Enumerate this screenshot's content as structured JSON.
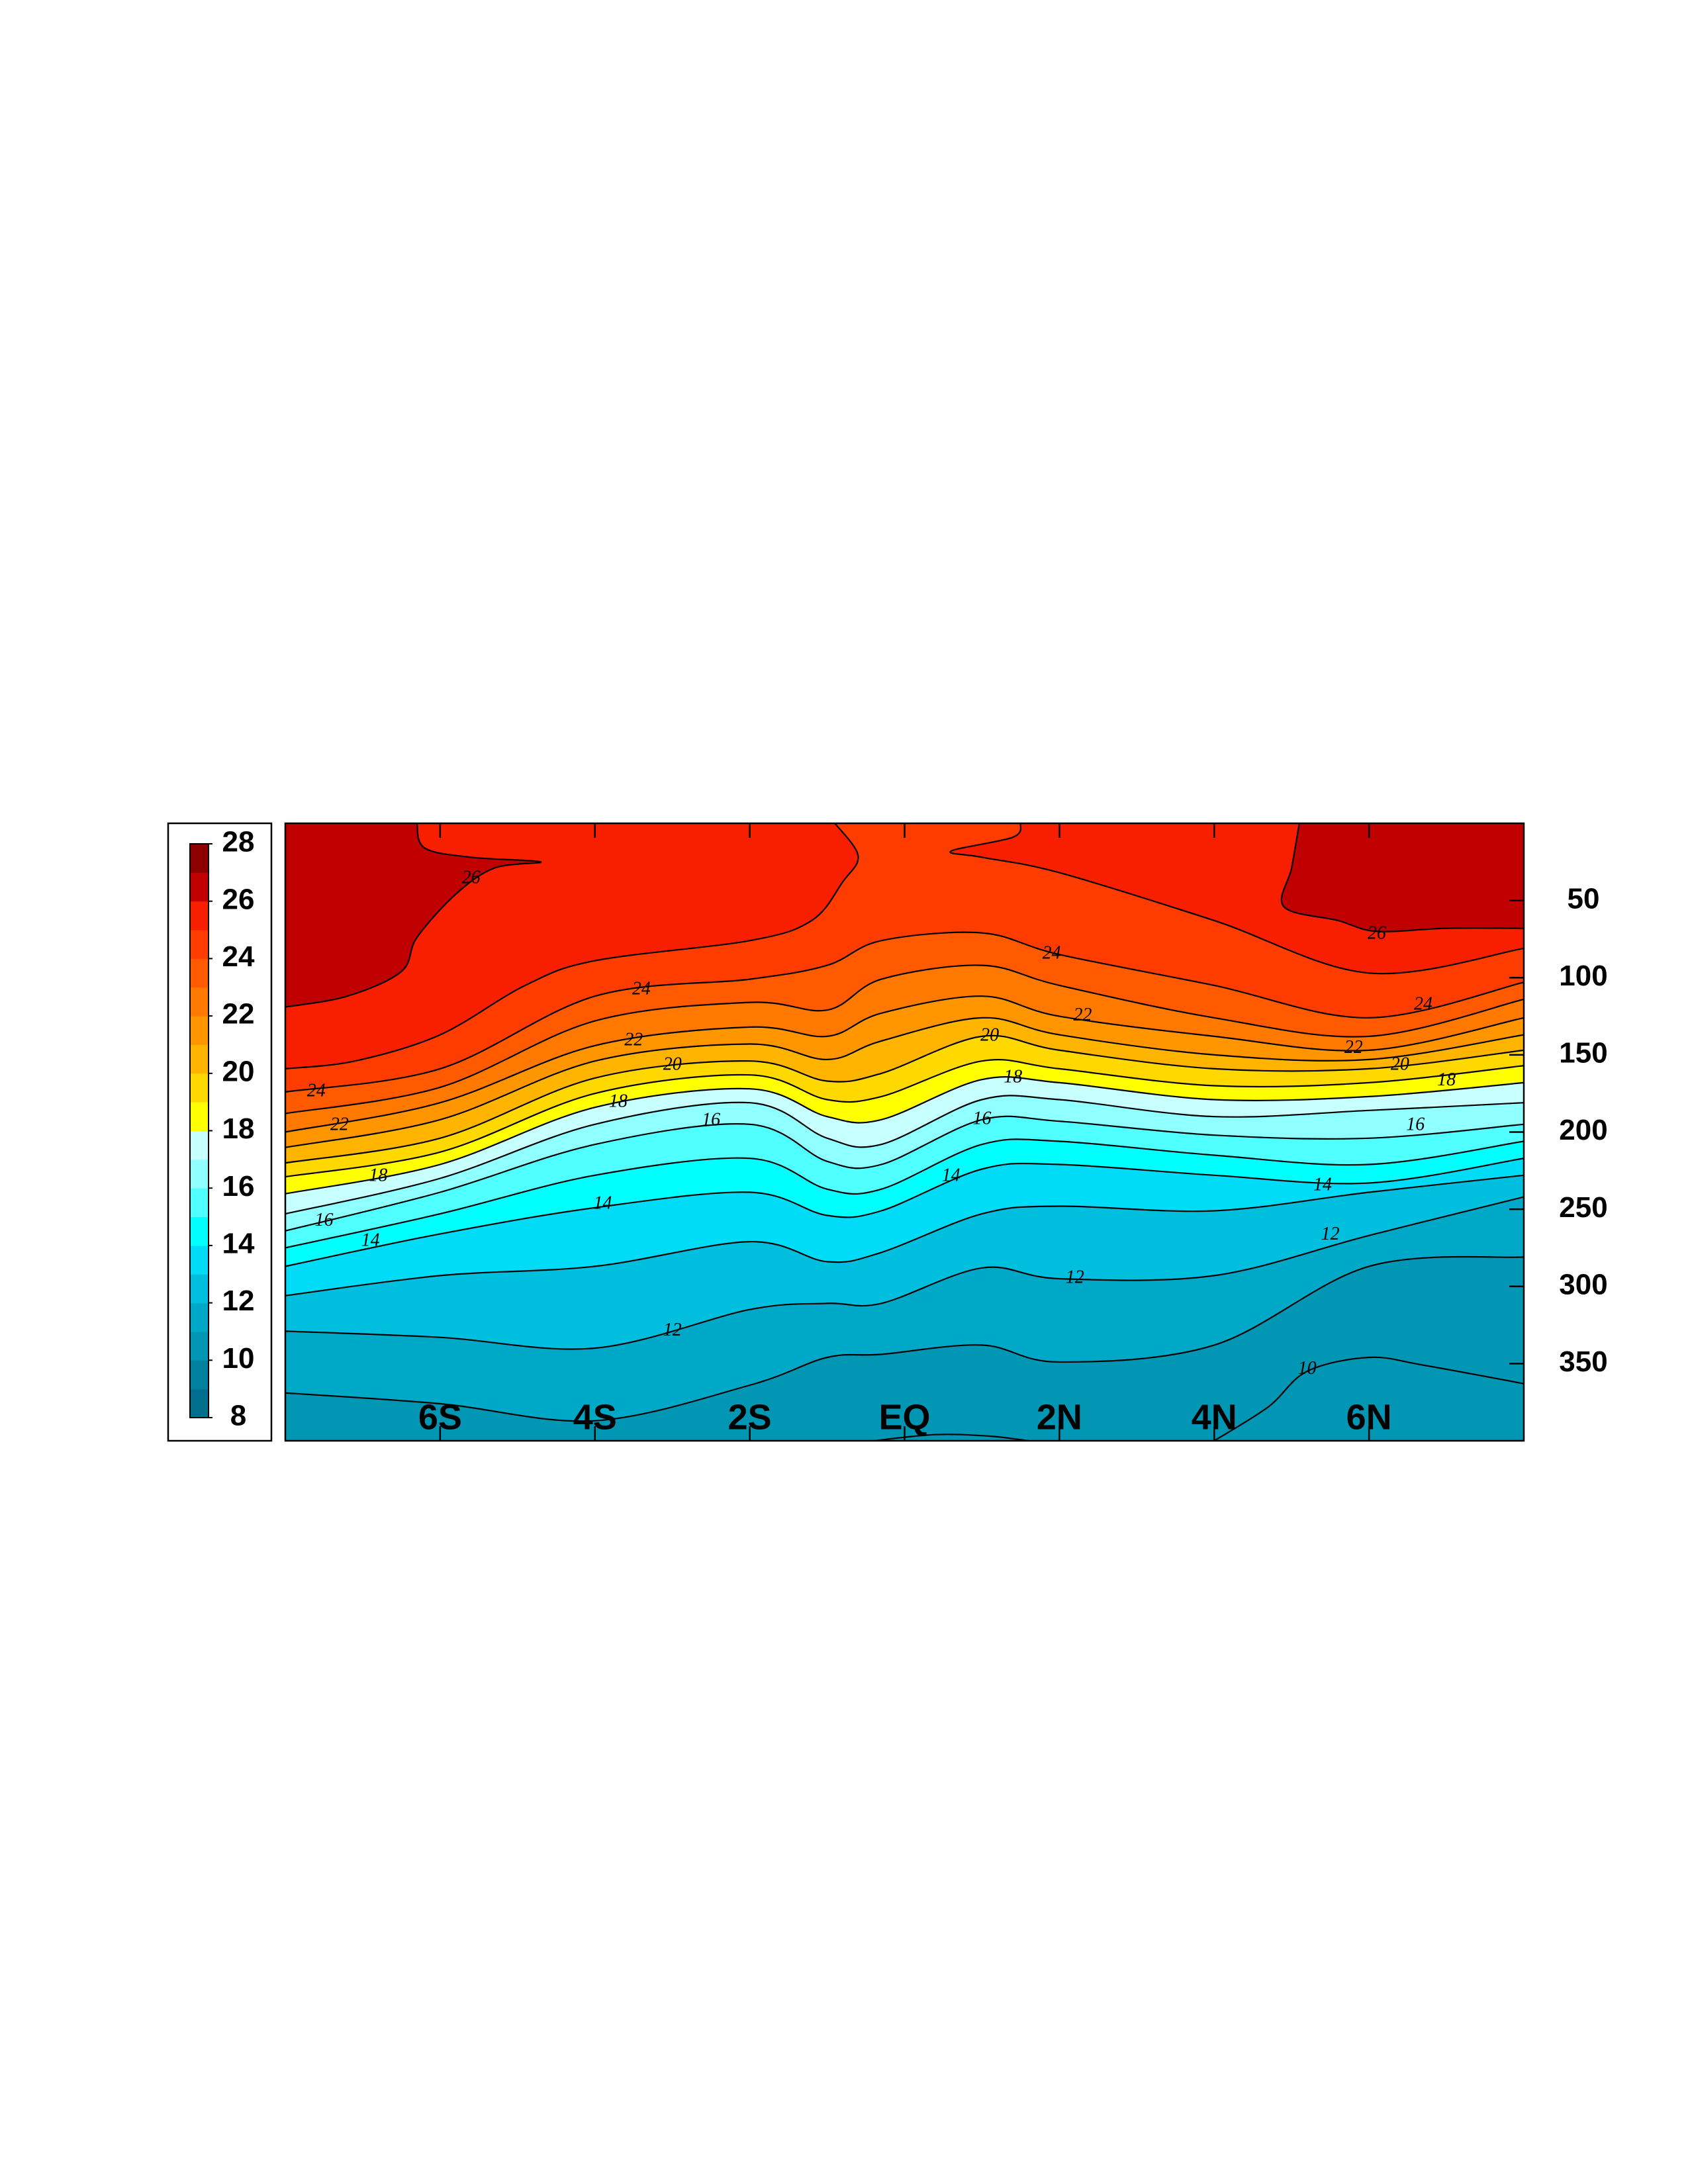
{
  "chart_data": {
    "type": "contour",
    "xlim": [
      -8,
      8
    ],
    "ylim": [
      0,
      400
    ],
    "invert_y": true,
    "xticks": [
      {
        "value": -6,
        "label": "6S"
      },
      {
        "value": -4,
        "label": "4S"
      },
      {
        "value": -2,
        "label": "2S"
      },
      {
        "value": 0,
        "label": "EQ"
      },
      {
        "value": 2,
        "label": "2N"
      },
      {
        "value": 4,
        "label": "4N"
      },
      {
        "value": 6,
        "label": "6N"
      }
    ],
    "yticks": [
      50,
      100,
      150,
      200,
      250,
      300,
      350
    ],
    "colorbar": {
      "levels": [
        8,
        9,
        10,
        11,
        12,
        13,
        14,
        15,
        16,
        17,
        18,
        19,
        20,
        21,
        22,
        23,
        24,
        25,
        26,
        27,
        28
      ],
      "colors": [
        "#006e8c",
        "#00809f",
        "#0096b4",
        "#00a8c8",
        "#00bede",
        "#00dcf8",
        "#00ffff",
        "#50ffff",
        "#90ffff",
        "#c8ffff",
        "#ffff00",
        "#ffd800",
        "#ffb400",
        "#ff9600",
        "#ff7800",
        "#ff5a00",
        "#ff3c00",
        "#f81e00",
        "#c00000",
        "#8c0000"
      ],
      "ticks": [
        8,
        10,
        12,
        14,
        16,
        18,
        20,
        22,
        24,
        26,
        28
      ]
    },
    "contours": [
      {
        "level": 10,
        "x": [
          4,
          4.7,
          5.2,
          6.0,
          6.7,
          8
        ],
        "y": [
          400,
          378,
          355,
          346,
          351,
          363
        ]
      },
      {
        "level": 10,
        "x": [
          -0.4,
          0.4,
          1.1,
          1.6
        ],
        "y": [
          400,
          396,
          397,
          400
        ]
      },
      {
        "level": 11,
        "x": [
          -8,
          -6,
          -4,
          -2,
          -1,
          -0.3,
          1,
          2,
          4,
          6,
          8
        ],
        "y": [
          369,
          376,
          387,
          364,
          346,
          344,
          338,
          349,
          338,
          287,
          281
        ]
      },
      {
        "level": 12,
        "x": [
          -8,
          -6,
          -4,
          -2,
          -1,
          -0.3,
          1,
          2,
          4,
          6,
          8
        ],
        "y": [
          329,
          333,
          340,
          315,
          311,
          311,
          288,
          295,
          293,
          267,
          242
        ]
      },
      {
        "level": 13,
        "x": [
          -8,
          -6,
          -4,
          -2,
          -1,
          -0.3,
          1,
          2,
          4,
          6,
          8
        ],
        "y": [
          306,
          293,
          287,
          271,
          284,
          278,
          253,
          248,
          251,
          239,
          228
        ]
      },
      {
        "level": 14,
        "x": [
          -8,
          -6,
          -4,
          -2,
          -1,
          -0.3,
          1,
          2,
          4,
          6,
          8
        ],
        "y": [
          287,
          266,
          249,
          239,
          254,
          251,
          224,
          221,
          228,
          233,
          217
        ]
      },
      {
        "level": 15,
        "x": [
          -8,
          -6,
          -4,
          -2,
          -1,
          -0.3,
          1,
          2,
          4,
          6,
          8
        ],
        "y": [
          275,
          253,
          228,
          217,
          237,
          237,
          208,
          206,
          215,
          221,
          206
        ]
      },
      {
        "level": 16,
        "x": [
          -8,
          -6,
          -4,
          -2,
          -1,
          -0.3,
          1,
          2,
          4,
          6,
          8
        ],
        "y": [
          264,
          239,
          208,
          195,
          219,
          221,
          192,
          193,
          202,
          204,
          195
        ]
      },
      {
        "level": 17,
        "x": [
          -8,
          -6,
          -4,
          -2,
          -1,
          -0.3,
          1,
          2,
          4,
          6,
          8
        ],
        "y": [
          253,
          230,
          195,
          181,
          204,
          208,
          179,
          179,
          190,
          186,
          181
        ]
      },
      {
        "level": 18,
        "x": [
          -8,
          -6,
          -4,
          -2,
          -1,
          -0.3,
          1,
          2,
          4,
          6,
          8
        ],
        "y": [
          240,
          221,
          184,
          172,
          190,
          192,
          166,
          168,
          179,
          177,
          168
        ]
      },
      {
        "level": 19,
        "x": [
          -8,
          -6,
          -4,
          -2,
          -1,
          -0.3,
          1,
          2,
          4,
          6,
          8
        ],
        "y": [
          229,
          213,
          175,
          163,
          179,
          177,
          154,
          159,
          170,
          168,
          157
        ]
      },
      {
        "level": 20,
        "x": [
          -8,
          -6,
          -4,
          -2,
          -1,
          -0.3,
          1,
          2,
          4,
          6,
          8
        ],
        "y": [
          220,
          204,
          165,
          154,
          167,
          162,
          138,
          147,
          159,
          159,
          147
        ]
      },
      {
        "level": 21,
        "x": [
          -8,
          -6,
          -4,
          -2,
          -1,
          -0.3,
          1,
          2,
          4,
          6,
          8
        ],
        "y": [
          210,
          192,
          154,
          143,
          153,
          141,
          126,
          137,
          150,
          153,
          137
        ]
      },
      {
        "level": 22,
        "x": [
          -8,
          -6,
          -4,
          -2,
          -1,
          -0.3,
          1,
          2,
          4,
          6,
          8
        ],
        "y": [
          200,
          181,
          144,
          132,
          138,
          123,
          112,
          125,
          138,
          147,
          126
        ]
      },
      {
        "level": 23,
        "x": [
          -8,
          -6,
          -4,
          -2,
          -1,
          -0.3,
          1,
          2,
          4,
          6,
          8
        ],
        "y": [
          188,
          171,
          128,
          116,
          121,
          101,
          92,
          105,
          126,
          138,
          114
        ]
      },
      {
        "level": 24,
        "x": [
          -8,
          -6,
          -4,
          -2,
          -1,
          -0.3,
          1,
          2,
          4,
          6,
          8
        ],
        "y": [
          174,
          159,
          112,
          101,
          92,
          76,
          71,
          85,
          105,
          126,
          103
        ]
      },
      {
        "level": 25,
        "x": [
          -8,
          -7.1,
          -6,
          -4.9,
          -4,
          -2,
          -1.2,
          -0.8,
          -0.6,
          -0.9
        ],
        "y": [
          159,
          154,
          137,
          105,
          89,
          76,
          63,
          38,
          21,
          0
        ]
      },
      {
        "level": 25,
        "x": [
          1.5,
          1.4,
          0.6,
          1,
          2,
          4,
          6,
          8
        ],
        "y": [
          0,
          9,
          18,
          22,
          32,
          63,
          97,
          81
        ]
      },
      {
        "level": 26,
        "x": [
          -8,
          -7.2,
          -6.5,
          -6.3,
          -5.8,
          -5.3,
          -4.7,
          -5.6,
          -6.2,
          -6.3
        ],
        "y": [
          119,
          112,
          96,
          74,
          46,
          29,
          25,
          22,
          16,
          0
        ]
      },
      {
        "level": 26,
        "x": [
          5.1,
          5.0,
          4.9,
          5.6,
          6.1,
          7.0,
          8
        ],
        "y": [
          0,
          29,
          54,
          63,
          70,
          68,
          68
        ]
      }
    ],
    "contour_labels": [
      {
        "level": 24,
        "x": -7.6,
        "y": 174
      },
      {
        "level": 22,
        "x": -7.3,
        "y": 196
      },
      {
        "level": 18,
        "x": -6.8,
        "y": 229
      },
      {
        "level": 16,
        "x": -7.5,
        "y": 258
      },
      {
        "level": 14,
        "x": -6.9,
        "y": 271
      },
      {
        "level": 26,
        "x": -5.6,
        "y": 36
      },
      {
        "level": 24,
        "x": -3.4,
        "y": 108
      },
      {
        "level": 22,
        "x": -3.5,
        "y": 141
      },
      {
        "level": 20,
        "x": -3.0,
        "y": 157
      },
      {
        "level": 18,
        "x": -3.7,
        "y": 181
      },
      {
        "level": 16,
        "x": -2.5,
        "y": 193
      },
      {
        "level": 14,
        "x": -3.9,
        "y": 247
      },
      {
        "level": 12,
        "x": -3.0,
        "y": 329
      },
      {
        "level": 24,
        "x": 1.9,
        "y": 85
      },
      {
        "level": 22,
        "x": 2.3,
        "y": 125
      },
      {
        "level": 20,
        "x": 1.1,
        "y": 138
      },
      {
        "level": 18,
        "x": 1.4,
        "y": 165
      },
      {
        "level": 16,
        "x": 1.0,
        "y": 192
      },
      {
        "level": 14,
        "x": 0.6,
        "y": 229
      },
      {
        "level": 12,
        "x": 2.2,
        "y": 295
      },
      {
        "level": 26,
        "x": 6.1,
        "y": 72
      },
      {
        "level": 24,
        "x": 6.7,
        "y": 118
      },
      {
        "level": 22,
        "x": 5.8,
        "y": 146
      },
      {
        "level": 20,
        "x": 6.4,
        "y": 157
      },
      {
        "level": 18,
        "x": 7.0,
        "y": 167
      },
      {
        "level": 16,
        "x": 6.6,
        "y": 196
      },
      {
        "level": 14,
        "x": 5.4,
        "y": 235
      },
      {
        "level": 12,
        "x": 5.5,
        "y": 267
      },
      {
        "level": 10,
        "x": 5.2,
        "y": 354
      }
    ]
  }
}
